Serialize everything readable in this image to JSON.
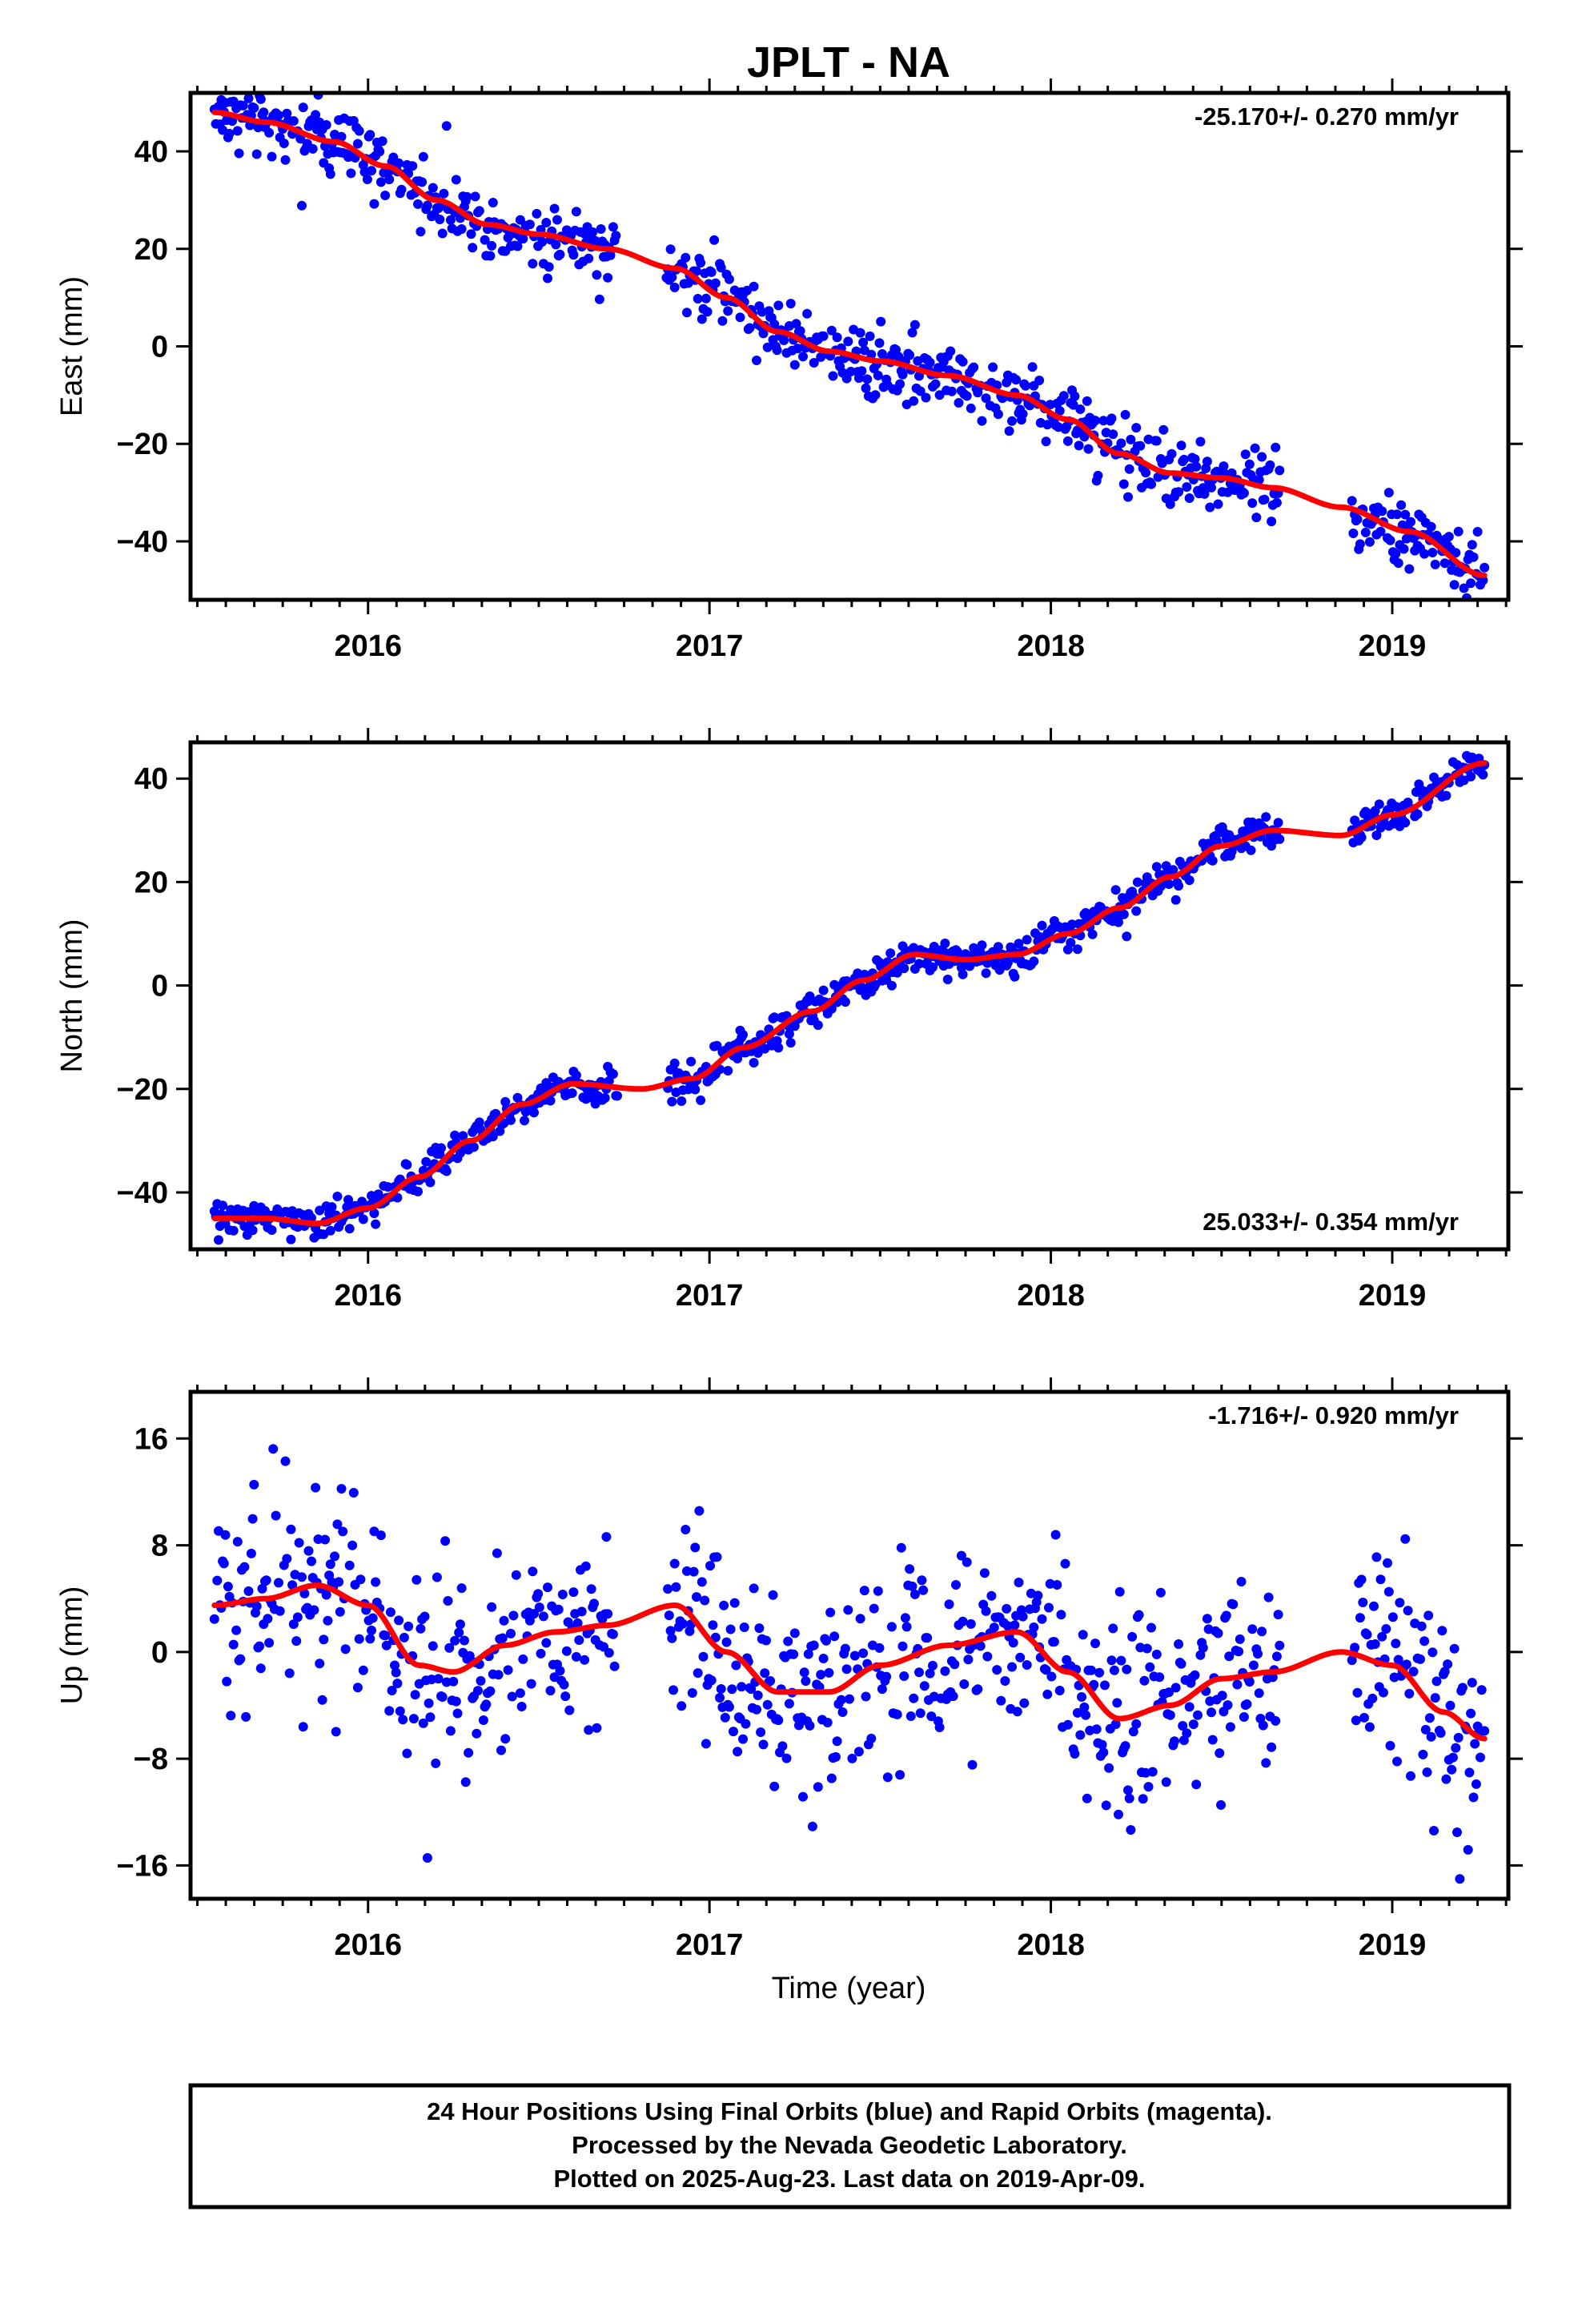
{
  "title": "JPLT - NA",
  "xlabel": "Time (year)",
  "caption": {
    "line1": "24 Hour Positions Using Final Orbits (blue) and Rapid Orbits (magenta).",
    "line2": "Processed by the Nevada Geodetic Laboratory.",
    "line3": "Plotted on 2025-Aug-23. Last data on 2019-Apr-09."
  },
  "colors": {
    "points": "#0000ff",
    "fit": "#ff0000",
    "frame": "#000000"
  },
  "chart_data": [
    {
      "type": "scatter",
      "component": "east",
      "ylabel": "East (mm)",
      "rate_label": "-25.170+/- 0.270 mm/yr",
      "rate_position": "top-right",
      "xlim": [
        2015.48,
        2019.34
      ],
      "ylim": [
        -52,
        52
      ],
      "xticks": [
        2016,
        2017,
        2018,
        2019
      ],
      "xtick_labels": [
        "2016",
        "2017",
        "2018",
        "2019"
      ],
      "yticks": [
        -40,
        -20,
        0,
        20,
        40
      ],
      "ytick_labels": [
        "−40",
        "−20",
        "0",
        "20",
        "40"
      ],
      "scatter": 3.5,
      "gaps": [
        [
          2016.73,
          2016.87
        ],
        [
          2018.67,
          2018.88
        ]
      ],
      "fit": {
        "x": [
          2015.55,
          2015.7,
          2015.9,
          2016.05,
          2016.2,
          2016.35,
          2016.5,
          2016.7,
          2016.9,
          2017.05,
          2017.2,
          2017.35,
          2017.5,
          2017.7,
          2017.9,
          2018.05,
          2018.2,
          2018.35,
          2018.5,
          2018.65,
          2018.85,
          2019.05,
          2019.27
        ],
        "y": [
          48,
          46,
          42,
          37,
          30,
          25,
          23,
          20,
          16,
          10,
          3,
          -1,
          -3,
          -6,
          -10,
          -15,
          -22,
          -26,
          -27,
          -29,
          -33,
          -38,
          -47
        ]
      }
    },
    {
      "type": "scatter",
      "component": "north",
      "ylabel": "North (mm)",
      "rate_label": "25.033+/- 0.354 mm/yr",
      "rate_position": "bottom-right",
      "xlim": [
        2015.48,
        2019.34
      ],
      "ylim": [
        -51,
        47
      ],
      "xticks": [
        2016,
        2017,
        2018,
        2019
      ],
      "xtick_labels": [
        "2016",
        "2017",
        "2018",
        "2019"
      ],
      "yticks": [
        -40,
        -20,
        0,
        20,
        40
      ],
      "ytick_labels": [
        "−40",
        "−20",
        "0",
        "20",
        "40"
      ],
      "scatter": 1.7,
      "gaps": [
        [
          2016.73,
          2016.87
        ],
        [
          2018.67,
          2018.88
        ]
      ],
      "fit": {
        "x": [
          2015.55,
          2015.7,
          2015.85,
          2016.0,
          2016.15,
          2016.3,
          2016.45,
          2016.6,
          2016.8,
          2016.95,
          2017.1,
          2017.3,
          2017.45,
          2017.6,
          2017.75,
          2017.9,
          2018.05,
          2018.2,
          2018.35,
          2018.5,
          2018.65,
          2018.85,
          2019.0,
          2019.27
        ],
        "y": [
          -45,
          -45,
          -46,
          -43,
          -37,
          -30,
          -23,
          -19,
          -20,
          -18,
          -12,
          -5,
          1,
          6,
          5,
          6,
          10,
          15,
          21,
          27,
          30,
          29,
          33,
          43
        ]
      }
    },
    {
      "type": "scatter",
      "component": "up",
      "ylabel": "Up (mm)",
      "rate_label": "-1.716+/- 0.920 mm/yr",
      "rate_position": "top-right",
      "xlim": [
        2015.48,
        2019.34
      ],
      "ylim": [
        -18.5,
        19.5
      ],
      "xticks": [
        2016,
        2017,
        2018,
        2019
      ],
      "xtick_labels": [
        "2016",
        "2017",
        "2018",
        "2019"
      ],
      "yticks": [
        -16,
        -8,
        0,
        8,
        16
      ],
      "ytick_labels": [
        "−16",
        "−8",
        "0",
        "8",
        "16"
      ],
      "scatter": 3.8,
      "gaps": [
        [
          2016.73,
          2016.87
        ],
        [
          2018.67,
          2018.88
        ]
      ],
      "fit": {
        "x": [
          2015.55,
          2015.7,
          2015.85,
          2016.0,
          2016.15,
          2016.25,
          2016.4,
          2016.55,
          2016.7,
          2016.9,
          2017.05,
          2017.2,
          2017.35,
          2017.5,
          2017.7,
          2017.9,
          2018.05,
          2018.2,
          2018.35,
          2018.5,
          2018.65,
          2018.85,
          2019.0,
          2019.15,
          2019.27
        ],
        "y": [
          3.5,
          4,
          5,
          3.5,
          -1,
          -1.5,
          0.5,
          1.5,
          2,
          3.5,
          0,
          -3,
          -3,
          -1,
          0.5,
          1.5,
          -1.5,
          -5,
          -4,
          -2,
          -1.5,
          0,
          -1,
          -4.5,
          -6.5
        ]
      }
    }
  ]
}
